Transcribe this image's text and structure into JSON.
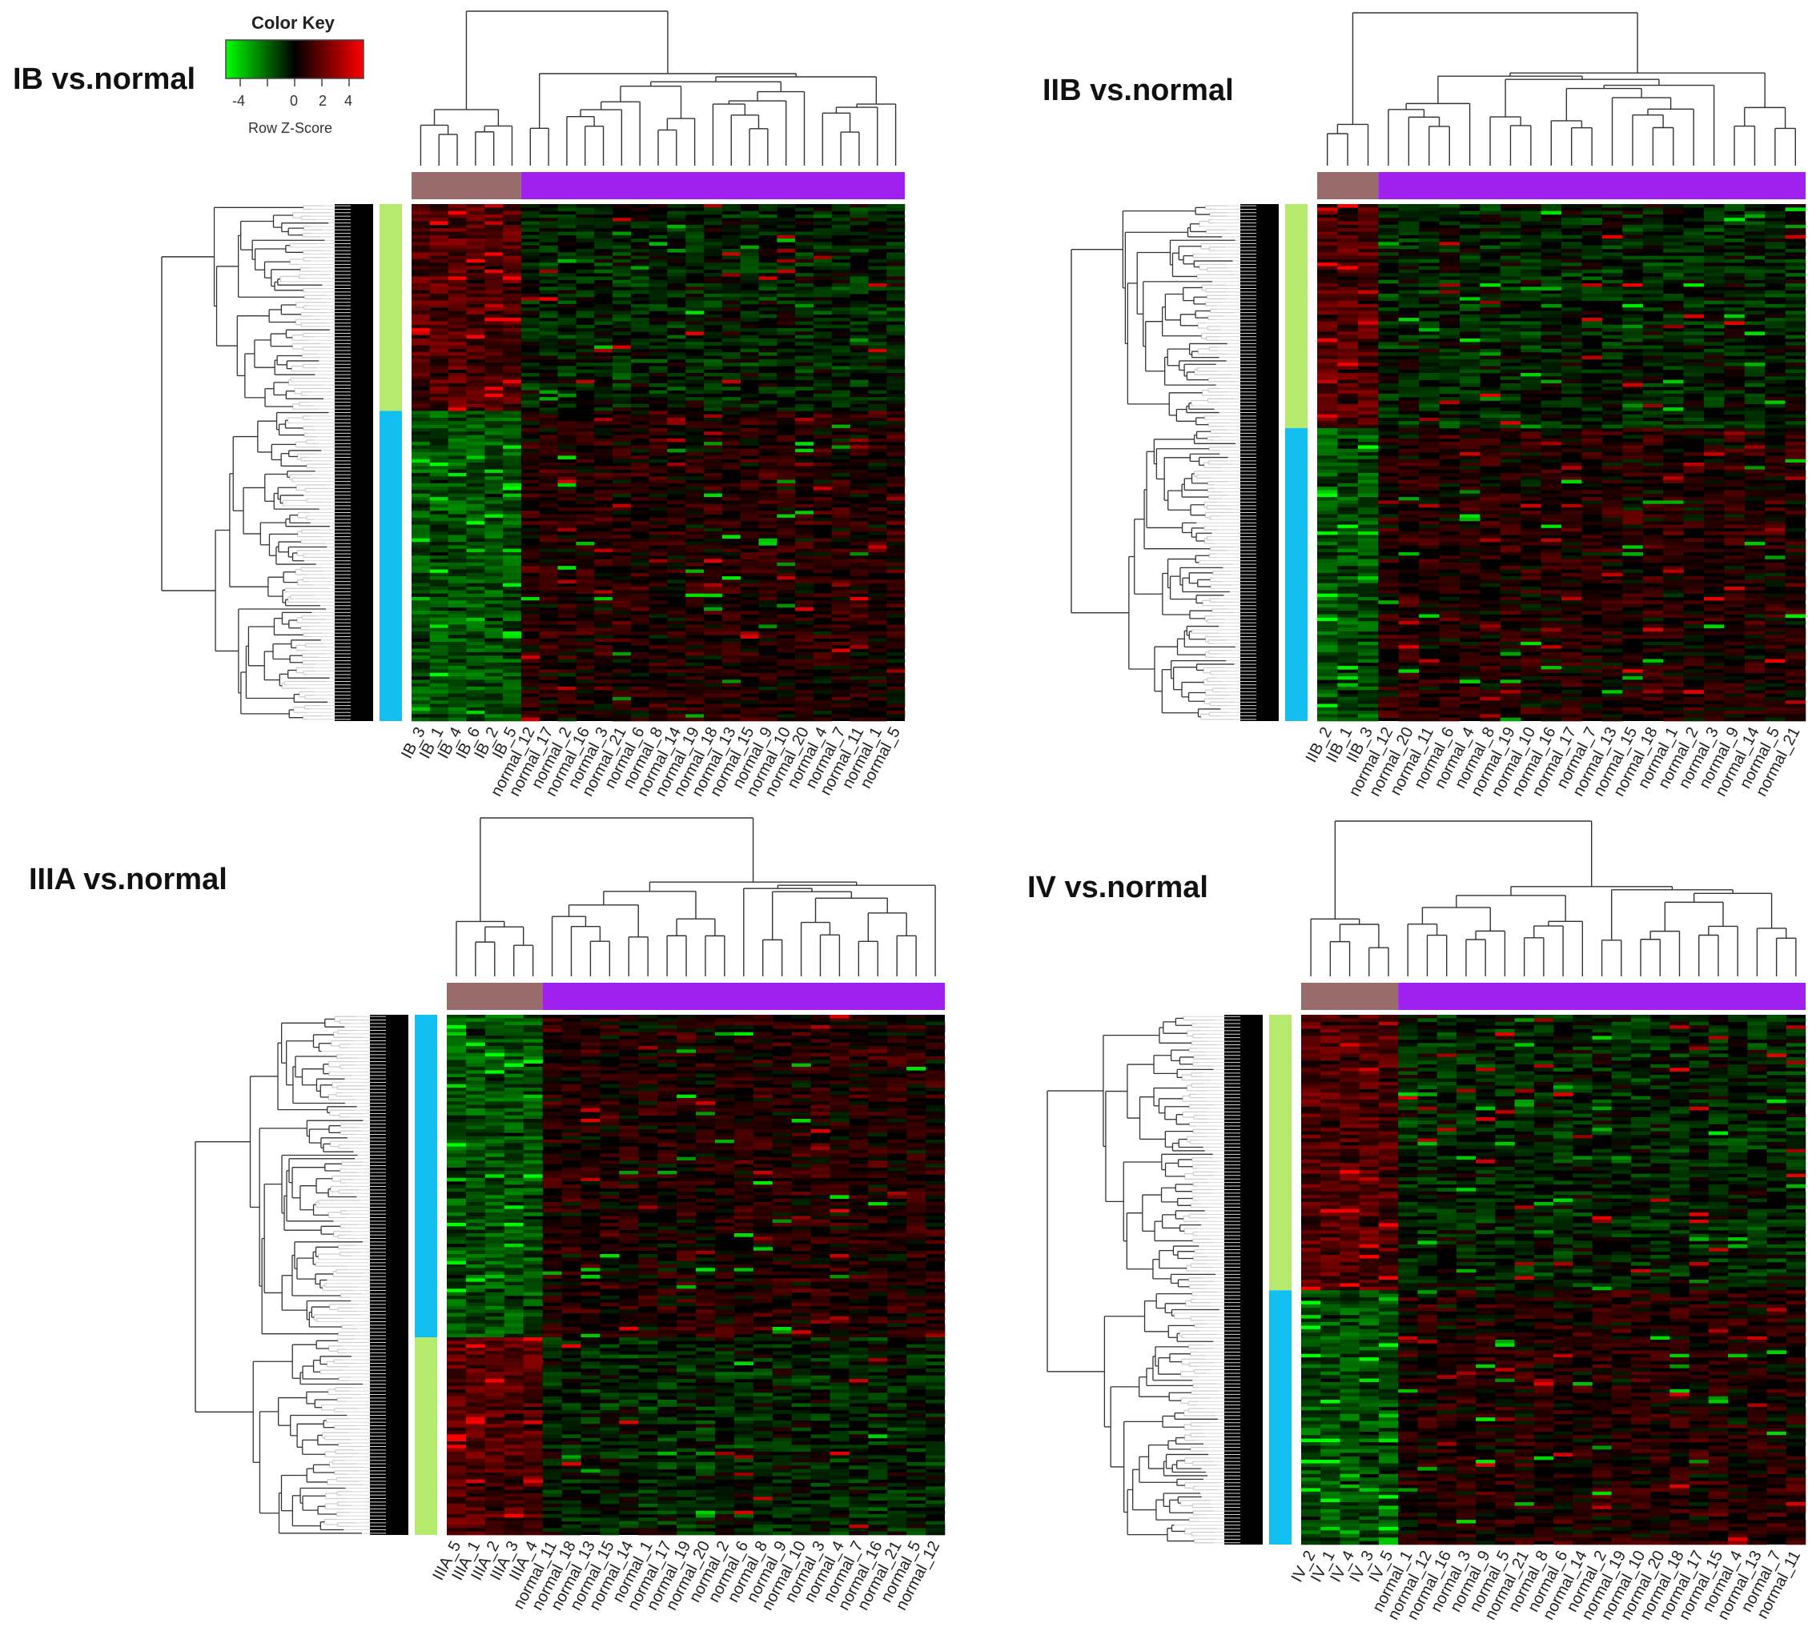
{
  "colors": {
    "low": "#00ff00",
    "mid": "#000000",
    "high": "#ff0000",
    "tumor_group": "#9a6b6b",
    "normal_group": "#a020f0",
    "cluster_green": "#b5ea6c",
    "cluster_blue": "#12bff0"
  },
  "color_key": {
    "title": "Color Key",
    "ticks": [
      "-4",
      "0",
      "2",
      "4"
    ],
    "label": "Row Z-Score"
  },
  "chart_data": [
    {
      "type": "heatmap",
      "title": "IB vs.normal",
      "columns": [
        "IB_3",
        "IB_1",
        "IB_4",
        "IB_6",
        "IB_2",
        "IB_5",
        "normal_12",
        "normal_17",
        "normal_2",
        "normal_16",
        "normal_3",
        "normal_21",
        "normal_6",
        "normal_8",
        "normal_14",
        "normal_19",
        "normal_18",
        "normal_13",
        "normal_15",
        "normal_9",
        "normal_10",
        "normal_20",
        "normal_4",
        "normal_7",
        "normal_11",
        "normal_1",
        "normal_5"
      ],
      "column_groups": {
        "tumor": 6,
        "normal": 21
      },
      "row_clusters": [
        "cluster_green",
        "cluster_blue"
      ],
      "zscore_range": [
        -4,
        4
      ]
    },
    {
      "type": "heatmap",
      "title": "IIB vs.normal",
      "columns": [
        "IIB_2",
        "IIB_1",
        "IIB_3",
        "normal_12",
        "normal_20",
        "normal_11",
        "normal_6",
        "normal_4",
        "normal_8",
        "normal_19",
        "normal_10",
        "normal_16",
        "normal_17",
        "normal_7",
        "normal_13",
        "normal_15",
        "normal_18",
        "normal_1",
        "normal_2",
        "normal_3",
        "normal_9",
        "normal_14",
        "normal_5",
        "normal_21"
      ],
      "column_groups": {
        "tumor": 3,
        "normal": 21
      },
      "row_clusters": [
        "cluster_green",
        "cluster_blue"
      ],
      "zscore_range": [
        -4,
        4
      ]
    },
    {
      "type": "heatmap",
      "title": "IIIA vs.normal",
      "columns": [
        "IIIA_5",
        "IIIA_1",
        "IIIA_2",
        "IIIA_3",
        "IIIA_4",
        "normal_11",
        "normal_18",
        "normal_13",
        "normal_15",
        "normal_14",
        "normal_1",
        "normal_17",
        "normal_19",
        "normal_20",
        "normal_2",
        "normal_6",
        "normal_8",
        "normal_9",
        "normal_10",
        "normal_3",
        "normal_4",
        "normal_7",
        "normal_16",
        "normal_21",
        "normal_5",
        "normal_12"
      ],
      "column_groups": {
        "tumor": 5,
        "normal": 21
      },
      "row_clusters": [
        "cluster_blue",
        "cluster_green"
      ],
      "zscore_range": [
        -4,
        4
      ]
    },
    {
      "type": "heatmap",
      "title": "IV vs.normal",
      "columns": [
        "IV_2",
        "IV_1",
        "IV_4",
        "IV_3",
        "IV_5",
        "normal_1",
        "normal_12",
        "normal_16",
        "normal_3",
        "normal_9",
        "normal_5",
        "normal_21",
        "normal_8",
        "normal_6",
        "normal_14",
        "normal_2",
        "normal_19",
        "normal_10",
        "normal_20",
        "normal_18",
        "normal_17",
        "normal_15",
        "normal_4",
        "normal_13",
        "normal_7",
        "normal_11"
      ],
      "column_groups": {
        "tumor": 5,
        "normal": 21
      },
      "row_clusters": [
        "cluster_green",
        "cluster_blue"
      ],
      "zscore_range": [
        -4,
        4
      ]
    }
  ]
}
